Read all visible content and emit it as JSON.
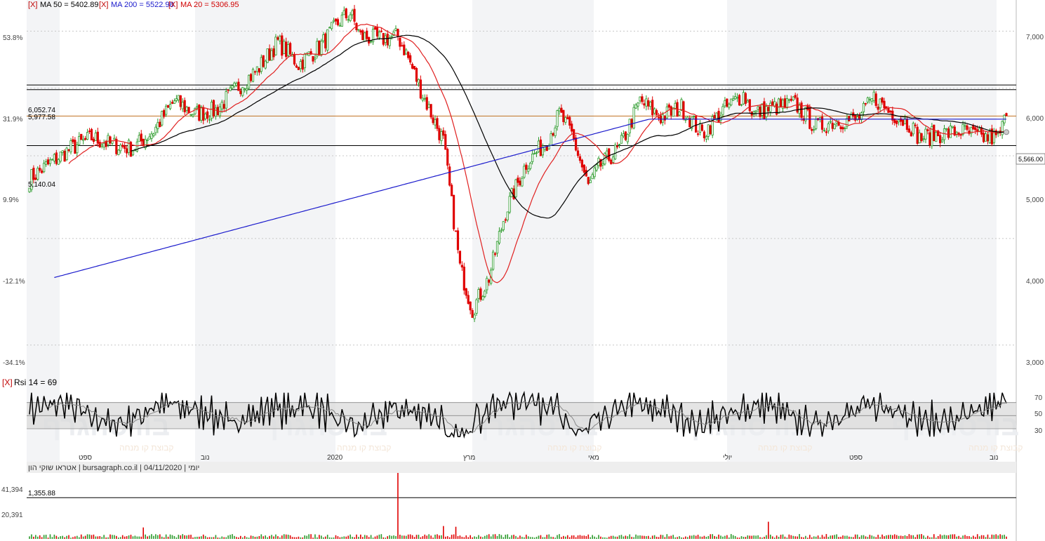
{
  "legend": {
    "close_marker": "[X]",
    "ma50": "MA 50 = 5402.89",
    "ma200": "MA 200 = 5522.98",
    "ma20": "MA 20 = 5306.95",
    "rsi": "Rsi 14 = 69"
  },
  "pct_axis": [
    "53.8%",
    "31.9%",
    "9.9%",
    "-12.1%",
    "-34.1%"
  ],
  "price_axis": [
    "7,000",
    "6,000",
    "5,000",
    "4,000",
    "3,000"
  ],
  "last_price_badge": "5,566.00",
  "levels": [
    "6,052.74",
    "5,977.58",
    "5,140.04"
  ],
  "rsi_axis": [
    "70",
    "50",
    "30"
  ],
  "months": [
    "ספט",
    "נוב",
    "2020",
    "מרץ",
    "מאי",
    "יולי",
    "ספט",
    "נוב"
  ],
  "footer_info": "אטראו שוקי הון | bursagraph.co.il | 04/11/2020 | יומי",
  "volume_axis": [
    "41,394",
    "20,391"
  ],
  "volume_level": "1,355.88",
  "watermark": "בורסהגרף",
  "watermark_sub": "קבוצת קו מנחה",
  "colors": {
    "up": "#2a9a2a",
    "down": "#e00000",
    "ma50": "#000000",
    "ma200": "#1a1acc",
    "ma20": "#e02020",
    "orange_level": "#c07020"
  },
  "chart_data": {
    "type": "candlestick",
    "period": "daily",
    "date": "04/11/2020",
    "y_scale": "log",
    "ylim": [
      2780,
      7400
    ],
    "close_path": [
      [
        0,
        4700
      ],
      [
        10,
        4900
      ],
      [
        20,
        5100
      ],
      [
        30,
        5250
      ],
      [
        40,
        5150
      ],
      [
        50,
        5100
      ],
      [
        60,
        5350
      ],
      [
        70,
        5800
      ],
      [
        80,
        5600
      ],
      [
        90,
        5650
      ],
      [
        100,
        6000
      ],
      [
        110,
        6300
      ],
      [
        120,
        6800
      ],
      [
        130,
        6400
      ],
      [
        140,
        6700
      ],
      [
        150,
        7200
      ],
      [
        155,
        7350
      ],
      [
        160,
        6900
      ],
      [
        170,
        6850
      ],
      [
        178,
        6900
      ],
      [
        182,
        6600
      ],
      [
        190,
        5900
      ],
      [
        200,
        5200
      ],
      [
        208,
        3700
      ],
      [
        214,
        3300
      ],
      [
        222,
        3600
      ],
      [
        230,
        4300
      ],
      [
        240,
        4900
      ],
      [
        250,
        5200
      ],
      [
        256,
        5600
      ],
      [
        262,
        5300
      ],
      [
        270,
        4600
      ],
      [
        275,
        4850
      ],
      [
        285,
        5100
      ],
      [
        295,
        5800
      ],
      [
        305,
        5550
      ],
      [
        315,
        5700
      ],
      [
        325,
        5300
      ],
      [
        335,
        5650
      ],
      [
        345,
        5900
      ],
      [
        350,
        5600
      ],
      [
        360,
        5700
      ],
      [
        370,
        5750
      ],
      [
        380,
        5400
      ],
      [
        390,
        5500
      ],
      [
        400,
        5500
      ],
      [
        408,
        5850
      ],
      [
        415,
        5650
      ],
      [
        425,
        5450
      ],
      [
        430,
        5250
      ],
      [
        440,
        5300
      ],
      [
        450,
        5350
      ],
      [
        460,
        5250
      ],
      [
        468,
        5250
      ],
      [
        472,
        5570
      ]
    ],
    "volume_spike_index": 178,
    "volume_ylim": [
      0,
      52000
    ],
    "ma20_last": 5306.95,
    "ma50_last": 5402.89,
    "ma200_last": 5522.98,
    "rsi_last": 69,
    "rsi_levels": [
      70,
      50,
      30
    ]
  }
}
